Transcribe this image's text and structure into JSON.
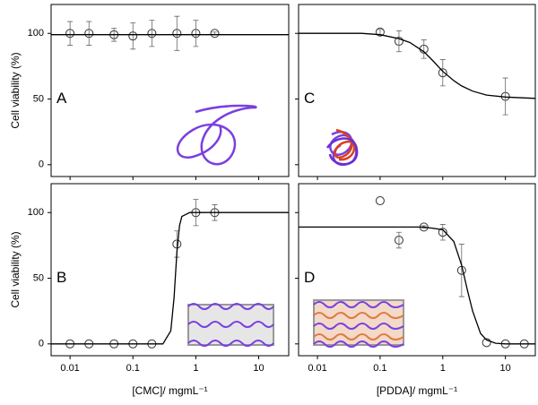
{
  "chart_data": [
    {
      "type": "scatter",
      "panel_label": "A",
      "ylabel": "Cell viability (%)",
      "x": [
        0.01,
        0.02,
        0.05,
        0.1,
        0.2,
        0.5,
        1,
        2
      ],
      "values": [
        100,
        100,
        99,
        98,
        100,
        100,
        100,
        100
      ],
      "errors": [
        9,
        9,
        5,
        10,
        10,
        13,
        10,
        1
      ],
      "fit": {
        "x": [
          0.005,
          0.01,
          0.1,
          1,
          10,
          30
        ],
        "values": [
          99,
          99,
          99,
          99,
          99,
          99
        ]
      },
      "xlim": [
        0.005,
        30
      ],
      "ylim": [
        -9,
        122
      ],
      "log_x": true,
      "xticks": [
        0.01,
        0.1,
        1,
        10
      ],
      "yticks": [
        0,
        50,
        100
      ],
      "show_xtick_labels": false,
      "show_ytick_labels": true,
      "color": "#333333",
      "fit_color": "#000000"
    },
    {
      "type": "scatter",
      "panel_label": "C",
      "x": [
        0.1,
        0.2,
        0.5,
        1,
        10
      ],
      "values": [
        101,
        94,
        88,
        70,
        52
      ],
      "errors": [
        2,
        8,
        7,
        10,
        14
      ],
      "fit": {
        "x": [
          0.005,
          0.05,
          0.1,
          0.2,
          0.3,
          0.5,
          0.7,
          1,
          1.5,
          2,
          3,
          5,
          10,
          30
        ],
        "values": [
          100,
          100,
          99,
          96,
          93,
          86,
          79,
          71,
          64,
          60,
          56,
          53,
          51.5,
          50.5
        ]
      },
      "xlim": [
        0.005,
        30
      ],
      "ylim": [
        -9,
        122
      ],
      "log_x": true,
      "xticks": [
        0.01,
        0.1,
        1,
        10
      ],
      "yticks": [
        0,
        50,
        100
      ],
      "show_xtick_labels": false,
      "show_ytick_labels": false,
      "color": "#333333",
      "fit_color": "#000000"
    },
    {
      "type": "scatter",
      "panel_label": "B",
      "ylabel": "Cell viability (%)",
      "xlabel": "[CMC]/ mgmL⁻¹",
      "x": [
        0.01,
        0.02,
        0.05,
        0.1,
        0.2,
        0.5,
        1,
        2
      ],
      "values": [
        0,
        0,
        0,
        0,
        0,
        76,
        100,
        100
      ],
      "errors": [
        0,
        0,
        0,
        0,
        0,
        10,
        10,
        6
      ],
      "fit": {
        "x": [
          0.005,
          0.1,
          0.3,
          0.4,
          0.45,
          0.5,
          0.55,
          0.6,
          0.8,
          2,
          30
        ],
        "values": [
          0,
          0,
          0,
          10,
          35,
          70,
          90,
          97,
          100,
          100,
          100
        ]
      },
      "xlim": [
        0.005,
        30
      ],
      "ylim": [
        -9,
        122
      ],
      "log_x": true,
      "xticks": [
        0.01,
        0.1,
        1,
        10
      ],
      "yticks": [
        0,
        50,
        100
      ],
      "show_xtick_labels": true,
      "show_ytick_labels": true,
      "color": "#333333",
      "fit_color": "#000000"
    },
    {
      "type": "scatter",
      "panel_label": "D",
      "xlabel": "[PDDA]/ mgmL⁻¹",
      "x": [
        0.1,
        0.2,
        0.5,
        1,
        2,
        5,
        10,
        20
      ],
      "values": [
        109,
        79,
        89,
        85,
        56,
        1,
        0,
        0
      ],
      "errors": [
        0,
        6,
        1,
        6,
        20,
        0,
        0,
        0
      ],
      "fit": {
        "x": [
          0.005,
          0.1,
          0.5,
          1,
          1.5,
          2,
          2.5,
          3,
          4,
          5,
          7,
          10,
          30
        ],
        "values": [
          89,
          89,
          89,
          87,
          78,
          60,
          40,
          25,
          8,
          3,
          0.5,
          0,
          0
        ]
      },
      "xlim": [
        0.005,
        30
      ],
      "ylim": [
        -9,
        122
      ],
      "log_x": true,
      "xticks": [
        0.01,
        0.1,
        1,
        10
      ],
      "yticks": [
        0,
        50,
        100
      ],
      "show_xtick_labels": true,
      "show_ytick_labels": false,
      "color": "#333333",
      "fit_color": "#000000"
    }
  ]
}
